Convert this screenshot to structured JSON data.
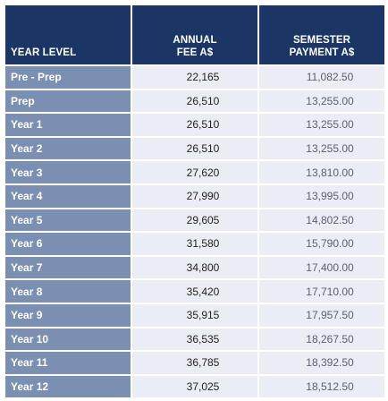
{
  "table": {
    "headers": {
      "year_level": "YEAR LEVEL",
      "annual_line1": "ANNUAL",
      "annual_line2": "FEE A$",
      "semester_line1": "SEMESTER",
      "semester_line2": "PAYMENT A$"
    },
    "rows": [
      {
        "level": "Pre - Prep",
        "annual": "22,165",
        "semester": "11,082.50"
      },
      {
        "level": "Prep",
        "annual": "26,510",
        "semester": "13,255.00"
      },
      {
        "level": "Year 1",
        "annual": "26,510",
        "semester": "13,255.00"
      },
      {
        "level": "Year 2",
        "annual": "26,510",
        "semester": "13,255.00"
      },
      {
        "level": "Year 3",
        "annual": "27,620",
        "semester": "13,810.00"
      },
      {
        "level": "Year 4",
        "annual": "27,990",
        "semester": "13,995.00"
      },
      {
        "level": "Year 5",
        "annual": "29,605",
        "semester": "14,802.50"
      },
      {
        "level": "Year 6",
        "annual": "31,580",
        "semester": "15,790.00"
      },
      {
        "level": "Year 7",
        "annual": "34,800",
        "semester": "17,400.00"
      },
      {
        "level": "Year 8",
        "annual": "35,420",
        "semester": "17,710.00"
      },
      {
        "level": "Year 9",
        "annual": "35,915",
        "semester": "17,957.50"
      },
      {
        "level": "Year 10",
        "annual": "36,535",
        "semester": "18,267.50"
      },
      {
        "level": "Year 11",
        "annual": "36,785",
        "semester": "18,392.50"
      },
      {
        "level": "Year 12",
        "annual": "37,025",
        "semester": "18,512.50"
      }
    ]
  },
  "colors": {
    "header_bg": "#1b3664",
    "level_bg": "#7a8fb2",
    "value_bg": "#eaedf3"
  }
}
